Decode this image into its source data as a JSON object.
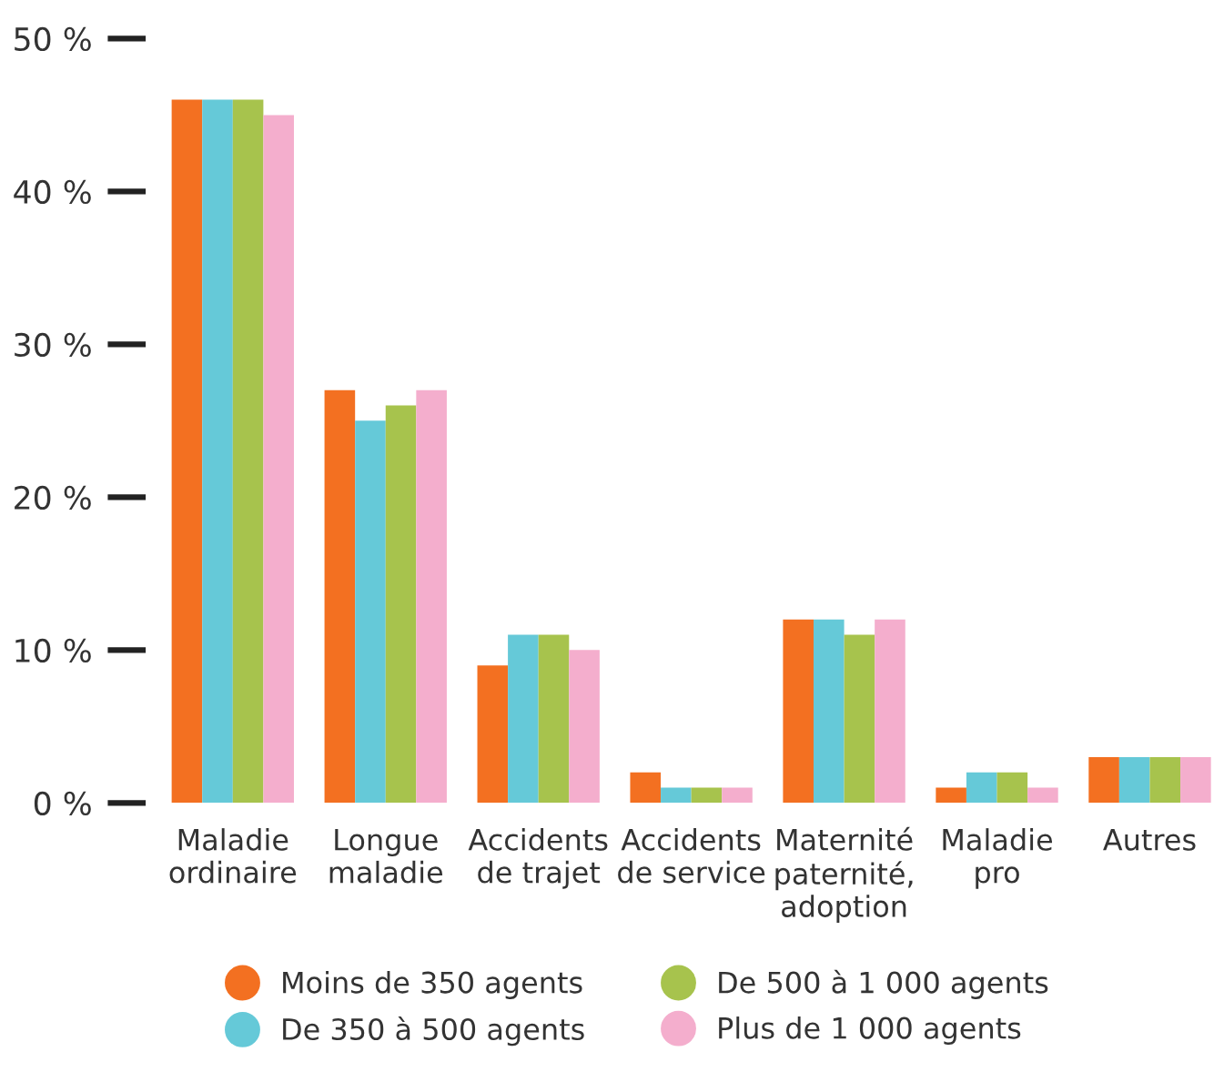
{
  "chart_data": {
    "type": "bar",
    "categories": [
      "Maladie\nordinaire",
      "Longue\nmaladie",
      "Accidents\nde trajet",
      "Accidents\nde service",
      "Maternité\npaternité,\nadoption",
      "Maladie\npro",
      "Autres"
    ],
    "series": [
      {
        "name": "Moins de 350 agents",
        "color": "#f37021",
        "values": [
          46,
          27,
          9,
          2,
          12,
          1,
          3
        ]
      },
      {
        "name": "De 350 à 500 agents",
        "color": "#65c9d8",
        "values": [
          46,
          25,
          11,
          1,
          12,
          2,
          3
        ]
      },
      {
        "name": "De 500 à 1 000 agents",
        "color": "#a7c34d",
        "values": [
          46,
          26,
          11,
          1,
          11,
          2,
          3
        ]
      },
      {
        "name": "Plus de 1 000 agents",
        "color": "#f4aecd",
        "values": [
          45,
          27,
          10,
          1,
          12,
          1,
          3
        ]
      }
    ],
    "ylim": [
      0,
      50
    ],
    "yticks": [
      {
        "value": 0,
        "label": "0 %"
      },
      {
        "value": 10,
        "label": "10 %"
      },
      {
        "value": 20,
        "label": "20 %"
      },
      {
        "value": 30,
        "label": "30 %"
      },
      {
        "value": 40,
        "label": "40 %"
      },
      {
        "value": 50,
        "label": "50 %"
      }
    ],
    "grid": false,
    "legend": "bottom",
    "marker": "circle"
  }
}
